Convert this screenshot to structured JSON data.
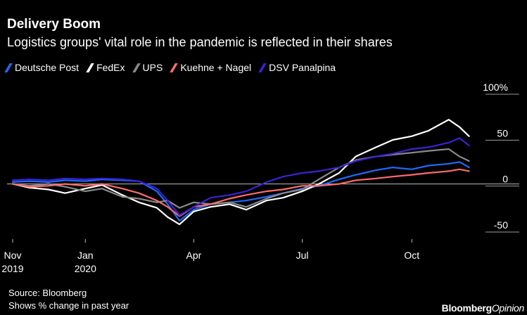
{
  "header": {
    "title": "Delivery Boom",
    "subtitle": "Logistics groups' vital role in the pandemic is reflected in their shares"
  },
  "footer": {
    "source": "Source: Bloomberg",
    "note": "Shows % change in past year",
    "brand_a": "Bloomberg",
    "brand_b": "Opinion"
  },
  "chart_data": {
    "type": "line",
    "title": "Delivery Boom",
    "subtitle": "Logistics groups' vital role in the pandemic is reflected in their shares",
    "xlabel": "",
    "ylabel": "",
    "x_ticks": [
      {
        "label": [
          "Nov",
          "2019"
        ],
        "date": "2019-11-01"
      },
      {
        "label": [
          "Jan",
          "2020"
        ],
        "date": "2020-01-01"
      },
      {
        "label": [
          "Apr",
          ""
        ],
        "date": "2020-04-01"
      },
      {
        "label": [
          "Jul",
          ""
        ],
        "date": "2020-07-01"
      },
      {
        "label": [
          "Oct",
          ""
        ],
        "date": "2020-10-01"
      }
    ],
    "xlim": [
      "2019-11-01",
      "2020-11-20"
    ],
    "y_ticks": [
      {
        "value": 100,
        "label": "100%"
      },
      {
        "value": 50,
        "label": "50"
      },
      {
        "value": 0,
        "label": "0"
      },
      {
        "value": -50,
        "label": "-50"
      }
    ],
    "ylim": [
      -60,
      110
    ],
    "zero_line": true,
    "grid": false,
    "legend_position": "top-left",
    "x": [
      "2019-11-01",
      "2019-11-15",
      "2019-12-01",
      "2019-12-15",
      "2020-01-01",
      "2020-01-15",
      "2020-02-01",
      "2020-02-15",
      "2020-03-01",
      "2020-03-10",
      "2020-03-20",
      "2020-04-01",
      "2020-04-15",
      "2020-05-01",
      "2020-05-15",
      "2020-06-01",
      "2020-06-15",
      "2020-07-01",
      "2020-07-15",
      "2020-08-01",
      "2020-08-15",
      "2020-09-01",
      "2020-09-15",
      "2020-10-01",
      "2020-10-15",
      "2020-11-01",
      "2020-11-10",
      "2020-11-18"
    ],
    "series": [
      {
        "name": "Deutsche Post",
        "color": "#1e6bff",
        "values": [
          2,
          3,
          2,
          4,
          3,
          5,
          4,
          3,
          -8,
          -22,
          -40,
          -28,
          -22,
          -20,
          -18,
          -14,
          -10,
          -5,
          -2,
          5,
          10,
          15,
          18,
          16,
          20,
          22,
          24,
          18
        ]
      },
      {
        "name": "FedEx",
        "color": "#ffffff",
        "values": [
          0,
          -4,
          -6,
          -10,
          -5,
          -1,
          -12,
          -20,
          -26,
          -36,
          -44,
          -30,
          -25,
          -22,
          -28,
          -18,
          -15,
          -8,
          0,
          12,
          30,
          40,
          48,
          52,
          58,
          70,
          62,
          52
        ]
      },
      {
        "name": "UPS",
        "color": "#8a8a8a",
        "values": [
          0,
          -2,
          0,
          -3,
          -8,
          -5,
          -14,
          -16,
          -20,
          -18,
          -26,
          -20,
          -22,
          -20,
          -25,
          -16,
          -10,
          -6,
          5,
          18,
          26,
          30,
          32,
          34,
          36,
          38,
          30,
          25
        ]
      },
      {
        "name": "Kuehne + Nagel",
        "color": "#ff6b6b",
        "values": [
          0,
          -3,
          -2,
          0,
          -2,
          0,
          -5,
          -10,
          -18,
          -25,
          -35,
          -25,
          -22,
          -16,
          -12,
          -8,
          -6,
          -2,
          -2,
          0,
          4,
          6,
          8,
          10,
          12,
          14,
          16,
          14
        ]
      },
      {
        "name": "DSV Panalpina",
        "color": "#3a22d6",
        "values": [
          4,
          5,
          4,
          6,
          5,
          6,
          5,
          3,
          -5,
          -18,
          -34,
          -25,
          -15,
          -12,
          -8,
          2,
          8,
          12,
          14,
          18,
          25,
          30,
          33,
          38,
          40,
          45,
          50,
          42
        ]
      }
    ]
  }
}
